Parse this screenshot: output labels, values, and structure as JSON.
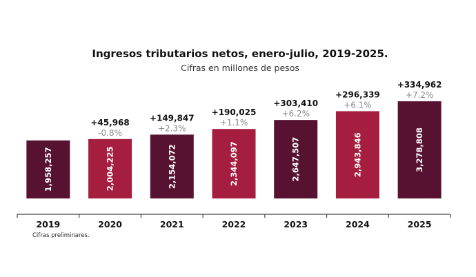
{
  "chart_data": {
    "type": "bar",
    "title": "Ingresos tributarios netos, enero-julio, 2019-2025.",
    "subtitle": "Cifras en millones de pesos",
    "xlabel": "",
    "ylabel": "",
    "categories": [
      "2019",
      "2020",
      "2021",
      "2022",
      "2023",
      "2024",
      "2025"
    ],
    "values": [
      1958257,
      2004225,
      2154072,
      2344097,
      2647507,
      2943846,
      3278808
    ],
    "value_labels": [
      "1,958,257",
      "2,004,225",
      "2,154,072",
      "2,344,097",
      "2,647,507",
      "2,943,846",
      "3,278,808"
    ],
    "increase_labels": [
      "",
      "+45,968",
      "+149,847",
      "+190,025",
      "+303,410",
      "+296,339",
      "+334,962"
    ],
    "pct_change_labels": [
      "",
      "-0.8%",
      "+2.3%",
      "+1.1%",
      "+6.2%",
      "+6.1%",
      "+7.2%"
    ],
    "bar_colors": [
      "#561230",
      "#a51e3f",
      "#561230",
      "#a51e3f",
      "#561230",
      "#a51e3f",
      "#561230"
    ],
    "ylim": [
      0,
      3400000
    ],
    "grid": false,
    "legend": "none",
    "note": "Cifras preliminares."
  }
}
